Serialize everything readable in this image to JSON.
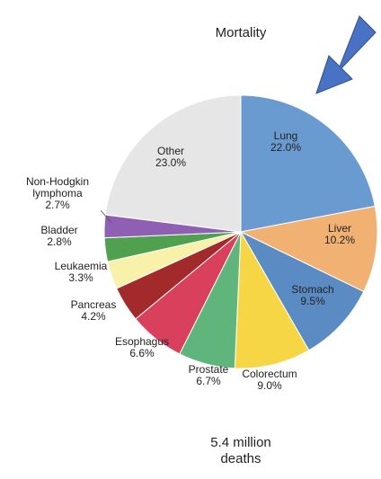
{
  "chart_data": {
    "type": "pie",
    "title": "Mortality",
    "subtitle": "5.4 million deaths",
    "categories": [
      "Lung",
      "Liver",
      "Stomach",
      "Colorectum",
      "Prostate",
      "Esophagus",
      "Pancreas",
      "Leukaemia",
      "Bladder",
      "Non-Hodgkin lymphoma",
      "Other"
    ],
    "values": [
      22.0,
      10.2,
      9.5,
      9.0,
      6.7,
      6.6,
      4.2,
      3.3,
      2.8,
      2.7,
      23.0
    ],
    "value_labels": [
      "22.0%",
      "10.2%",
      "9.5%",
      "9.0%",
      "6.7%",
      "6.6%",
      "4.2%",
      "3.3%",
      "2.8%",
      "2.7%",
      "23.0%"
    ],
    "colors": [
      "#6a9bd0",
      "#f0b173",
      "#5a8bc2",
      "#f6d645",
      "#5fb57b",
      "#d8405b",
      "#a22a2a",
      "#f8f1aa",
      "#4fa04f",
      "#8e5fb2",
      "#e6e6e6"
    ]
  }
}
